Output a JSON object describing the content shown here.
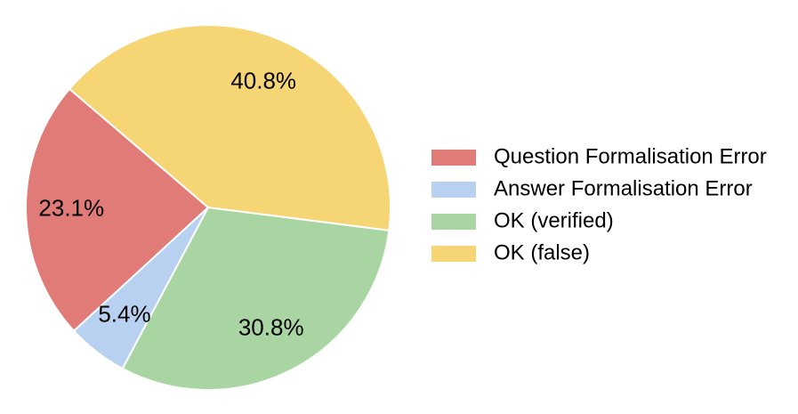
{
  "chart_data": {
    "type": "pie",
    "categories": [
      "Question Formalisation Error",
      "Answer Formalisation Error",
      "OK (verified)",
      "OK (false)"
    ],
    "values": [
      23.1,
      5.4,
      30.8,
      40.8
    ],
    "value_labels": [
      "23.1%",
      "5.4%",
      "30.8%",
      "40.8%"
    ],
    "colors": [
      "#e07b78",
      "#b8d1f0",
      "#a8d5a2",
      "#f6d574"
    ],
    "legend": "right"
  }
}
